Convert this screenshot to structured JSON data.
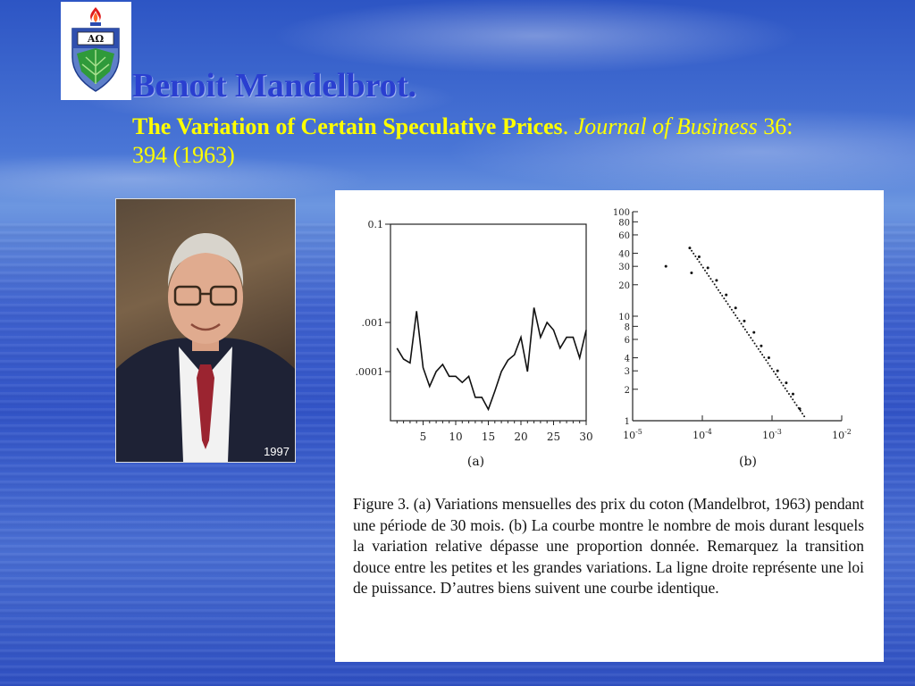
{
  "slide": {
    "title": "Benoit Mandelbrot.",
    "subtitle_bold": "The Variation of Certain Speculative Prices",
    "subtitle_sep": ". ",
    "journal": "Journal of Business",
    "citation": " 36: 394 (1963)"
  },
  "logo": {
    "text": "AΩ",
    "icon": "university-crest-icon"
  },
  "photo": {
    "year": "1997",
    "icon": "portrait-photo"
  },
  "colors": {
    "title": "#2a3fd0",
    "subtitle": "#ffff00",
    "background": "#3a5fcf"
  },
  "figure": {
    "caption": "Figure 3. (a) Variations mensuelles des prix du coton (Mandelbrot, 1963) pendant une période de 30 mois. (b) La courbe montre le nombre de mois durant lesquels la variation relative dépasse une proportion donnée. Remarquez la transition douce entre les petites et les grandes variations. La ligne droite représente une loi de puissance. D’autres biens suivent une courbe identique."
  },
  "chart_data": [
    {
      "type": "line",
      "label": "(a)",
      "y_scale": "log",
      "x_ticks": [
        5,
        10,
        15,
        20,
        25,
        30
      ],
      "y_ticks": [
        {
          "v": 0.1,
          "label": "0.1"
        },
        {
          "v": 0.001,
          "label": ".001"
        },
        {
          "v": 0.0001,
          "label": ".0001"
        }
      ],
      "xlim": [
        0,
        30
      ],
      "ylim": [
        1e-05,
        0.1
      ],
      "grid": false,
      "x": [
        1,
        2,
        3,
        4,
        5,
        6,
        7,
        8,
        9,
        10,
        11,
        12,
        13,
        14,
        15,
        16,
        17,
        18,
        19,
        20,
        21,
        22,
        23,
        24,
        25,
        26,
        27,
        28,
        29,
        30
      ],
      "y": [
        0.0003,
        0.00018,
        0.00015,
        0.0017,
        0.00012,
        5e-05,
        0.0001,
        0.00014,
        8e-05,
        8e-05,
        6e-05,
        8e-05,
        3e-05,
        3e-05,
        1.7e-05,
        4e-05,
        0.0001,
        0.00017,
        0.00022,
        0.0005,
        0.0001,
        0.002,
        0.0005,
        0.001,
        0.0007,
        0.0003,
        0.0005,
        0.0005,
        0.00019,
        0.0007
      ]
    },
    {
      "type": "scatter",
      "label": "(b)",
      "x_scale": "log",
      "y_scale": "log",
      "x_ticks": [
        {
          "v": 1e-05,
          "base": "10",
          "exp": "-5"
        },
        {
          "v": 0.0001,
          "base": "10",
          "exp": "-4"
        },
        {
          "v": 0.001,
          "base": "10",
          "exp": "-3"
        },
        {
          "v": 0.01,
          "base": "10",
          "exp": "-2"
        }
      ],
      "y_ticks": [
        1,
        2,
        3,
        4,
        6,
        8,
        10,
        20,
        30,
        40,
        60,
        80,
        100
      ],
      "xlim": [
        1e-05,
        0.01
      ],
      "ylim": [
        1,
        100
      ],
      "grid": false,
      "x": [
        3e-05,
        7e-05,
        6.6e-05,
        9e-05,
        0.00012,
        0.00016,
        0.00022,
        0.0003,
        0.0004,
        0.00055,
        0.0007,
        0.0009,
        0.0012,
        0.0016,
        0.002,
        0.0025
      ],
      "y": [
        30,
        26,
        45,
        37,
        29,
        22,
        16,
        12,
        9,
        7,
        5.2,
        4,
        3,
        2.3,
        1.8,
        1.3
      ]
    }
  ]
}
